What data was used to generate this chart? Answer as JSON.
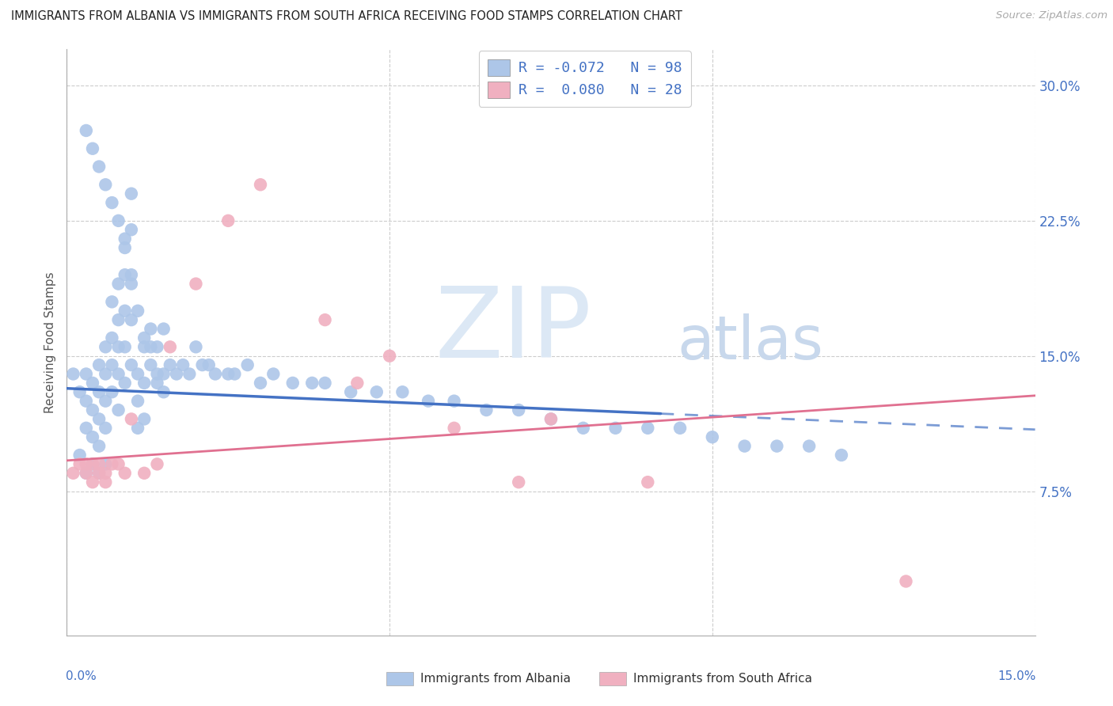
{
  "title": "IMMIGRANTS FROM ALBANIA VS IMMIGRANTS FROM SOUTH AFRICA RECEIVING FOOD STAMPS CORRELATION CHART",
  "source": "Source: ZipAtlas.com",
  "ylabel": "Receiving Food Stamps",
  "ytick_vals": [
    0.075,
    0.15,
    0.225,
    0.3
  ],
  "ytick_labels": [
    "7.5%",
    "15.0%",
    "22.5%",
    "30.0%"
  ],
  "xlim": [
    0.0,
    0.15
  ],
  "ylim": [
    -0.005,
    0.32
  ],
  "legend_albania_R": "-0.072",
  "legend_albania_N": "98",
  "legend_sa_R": "0.080",
  "legend_sa_N": "28",
  "legend_label_albania": "Immigrants from Albania",
  "legend_label_sa": "Immigrants from South Africa",
  "albania_color": "#adc6e8",
  "sa_color": "#f0b0c0",
  "albania_line_color": "#4472c4",
  "sa_line_color": "#e07090",
  "watermark_zip_color": "#dce8f5",
  "watermark_atlas_color": "#c8d8ec",
  "tick_color": "#4472c4",
  "grid_color": "#cccccc",
  "albania_x": [
    0.001,
    0.002,
    0.002,
    0.003,
    0.003,
    0.003,
    0.003,
    0.004,
    0.004,
    0.004,
    0.004,
    0.005,
    0.005,
    0.005,
    0.005,
    0.005,
    0.006,
    0.006,
    0.006,
    0.006,
    0.006,
    0.007,
    0.007,
    0.007,
    0.007,
    0.008,
    0.008,
    0.008,
    0.008,
    0.008,
    0.009,
    0.009,
    0.009,
    0.009,
    0.009,
    0.01,
    0.01,
    0.01,
    0.01,
    0.01,
    0.011,
    0.011,
    0.011,
    0.012,
    0.012,
    0.012,
    0.013,
    0.013,
    0.014,
    0.014,
    0.015,
    0.015,
    0.016,
    0.017,
    0.018,
    0.019,
    0.02,
    0.021,
    0.022,
    0.023,
    0.025,
    0.026,
    0.028,
    0.03,
    0.032,
    0.035,
    0.038,
    0.04,
    0.044,
    0.048,
    0.052,
    0.056,
    0.06,
    0.065,
    0.07,
    0.075,
    0.08,
    0.085,
    0.09,
    0.095,
    0.1,
    0.105,
    0.11,
    0.115,
    0.12,
    0.003,
    0.004,
    0.005,
    0.006,
    0.007,
    0.008,
    0.009,
    0.01,
    0.011,
    0.012,
    0.013,
    0.014,
    0.015
  ],
  "albania_y": [
    0.14,
    0.13,
    0.095,
    0.14,
    0.125,
    0.11,
    0.085,
    0.135,
    0.12,
    0.105,
    0.09,
    0.145,
    0.13,
    0.115,
    0.1,
    0.085,
    0.155,
    0.14,
    0.125,
    0.11,
    0.09,
    0.18,
    0.16,
    0.145,
    0.13,
    0.19,
    0.17,
    0.155,
    0.14,
    0.12,
    0.21,
    0.195,
    0.175,
    0.155,
    0.135,
    0.24,
    0.22,
    0.19,
    0.17,
    0.145,
    0.14,
    0.125,
    0.11,
    0.155,
    0.135,
    0.115,
    0.165,
    0.145,
    0.155,
    0.135,
    0.165,
    0.14,
    0.145,
    0.14,
    0.145,
    0.14,
    0.155,
    0.145,
    0.145,
    0.14,
    0.14,
    0.14,
    0.145,
    0.135,
    0.14,
    0.135,
    0.135,
    0.135,
    0.13,
    0.13,
    0.13,
    0.125,
    0.125,
    0.12,
    0.12,
    0.115,
    0.11,
    0.11,
    0.11,
    0.11,
    0.105,
    0.1,
    0.1,
    0.1,
    0.095,
    0.275,
    0.265,
    0.255,
    0.245,
    0.235,
    0.225,
    0.215,
    0.195,
    0.175,
    0.16,
    0.155,
    0.14,
    0.13
  ],
  "sa_x": [
    0.001,
    0.002,
    0.003,
    0.003,
    0.004,
    0.004,
    0.005,
    0.005,
    0.006,
    0.006,
    0.007,
    0.008,
    0.009,
    0.01,
    0.012,
    0.014,
    0.016,
    0.02,
    0.025,
    0.03,
    0.04,
    0.045,
    0.05,
    0.06,
    0.07,
    0.075,
    0.09,
    0.13
  ],
  "sa_y": [
    0.085,
    0.09,
    0.09,
    0.085,
    0.09,
    0.08,
    0.09,
    0.085,
    0.085,
    0.08,
    0.09,
    0.09,
    0.085,
    0.115,
    0.085,
    0.09,
    0.155,
    0.19,
    0.225,
    0.245,
    0.17,
    0.135,
    0.15,
    0.11,
    0.08,
    0.115,
    0.08,
    0.025
  ],
  "alb_line_x0": 0.0,
  "alb_line_x1": 0.092,
  "alb_line_x2": 0.15,
  "alb_line_y0": 0.132,
  "alb_line_y1": 0.118,
  "sa_line_x0": 0.0,
  "sa_line_x1": 0.15,
  "sa_line_y0": 0.092,
  "sa_line_y1": 0.128
}
